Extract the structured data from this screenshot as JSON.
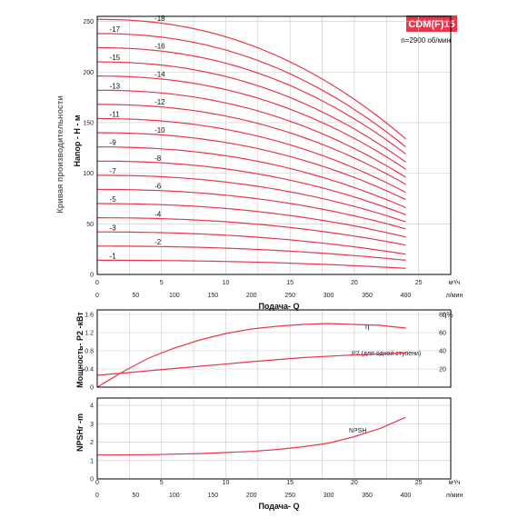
{
  "chart_data": [
    {
      "type": "line",
      "ylabel_outer": "Кривая производительности",
      "ylabel": "Напор - Н - м",
      "xlabel": "Подача- Q",
      "badge": "CDM(F)15",
      "speed": "n=2900 об/мин",
      "x_top_ticks": [
        "0",
        "5",
        "10",
        "15",
        "20",
        "25"
      ],
      "x_top_unit": "м³/ч",
      "x_bottom_ticks": [
        "0",
        "50",
        "100",
        "150",
        "200",
        "250",
        "300",
        "350",
        "400"
      ],
      "x_bottom_unit": "л/мин",
      "y_ticks": [
        "0",
        "50",
        "100",
        "150",
        "200",
        "250"
      ],
      "xlim": [
        0,
        27.5
      ],
      "ylim": [
        0,
        255
      ],
      "series": [
        {
          "name": "-1",
          "h0": 14,
          "h1": 6
        },
        {
          "name": "-2",
          "h0": 28,
          "h1": 14
        },
        {
          "name": "-3",
          "h0": 42,
          "h1": 20
        },
        {
          "name": "-4",
          "h0": 56,
          "h1": 29
        },
        {
          "name": "-5",
          "h0": 70,
          "h1": 37
        },
        {
          "name": "-6",
          "h0": 84,
          "h1": 45
        },
        {
          "name": "-7",
          "h0": 98,
          "h1": 52
        },
        {
          "name": "-8",
          "h0": 112,
          "h1": 59
        },
        {
          "name": "-9",
          "h0": 126,
          "h1": 66
        },
        {
          "name": "-10",
          "h0": 140,
          "h1": 74
        },
        {
          "name": "-11",
          "h0": 154,
          "h1": 81
        },
        {
          "name": "-12",
          "h0": 168,
          "h1": 89
        },
        {
          "name": "-13",
          "h0": 182,
          "h1": 96
        },
        {
          "name": "-14",
          "h0": 196,
          "h1": 104
        },
        {
          "name": "-15",
          "h0": 210,
          "h1": 111
        },
        {
          "name": "-16",
          "h0": 224,
          "h1": 119
        },
        {
          "name": "-17",
          "h0": 238,
          "h1": 126
        },
        {
          "name": "-18",
          "h0": 252,
          "h1": 134
        }
      ]
    },
    {
      "type": "line",
      "ylabel": "Мощность- P2 -кВт",
      "ylabel_right": "η%",
      "y_ticks": [
        "0",
        "0.4",
        "0.8",
        "1.2",
        "1.6"
      ],
      "y_right_ticks": [
        "20",
        "40",
        "60",
        "80"
      ],
      "ylim": [
        0,
        1.7
      ],
      "series": [
        {
          "name": "η",
          "x": [
            0,
            2,
            4,
            6,
            8,
            10,
            12,
            14,
            16,
            18,
            20,
            22,
            24
          ],
          "y": [
            0,
            17,
            32,
            43,
            52,
            59,
            64,
            67,
            69,
            70,
            69,
            68,
            65
          ]
        },
        {
          "name": "P2 (для одной ступени)",
          "x": [
            0,
            4,
            8,
            12,
            16,
            20,
            24
          ],
          "y": [
            0.26,
            0.36,
            0.46,
            0.56,
            0.65,
            0.71,
            0.75
          ]
        }
      ]
    },
    {
      "type": "line",
      "ylabel": "NPSHr -m",
      "xlabel": "Подача- Q",
      "y_ticks": [
        "0",
        "1",
        "2",
        "3",
        "4"
      ],
      "ylim": [
        0,
        4.4
      ],
      "series": [
        {
          "name": "NPSH",
          "x": [
            0,
            4,
            8,
            12,
            14,
            16,
            18,
            20,
            22,
            24
          ],
          "y": [
            1.3,
            1.32,
            1.38,
            1.5,
            1.6,
            1.75,
            1.95,
            2.3,
            2.75,
            3.35
          ]
        }
      ]
    }
  ]
}
